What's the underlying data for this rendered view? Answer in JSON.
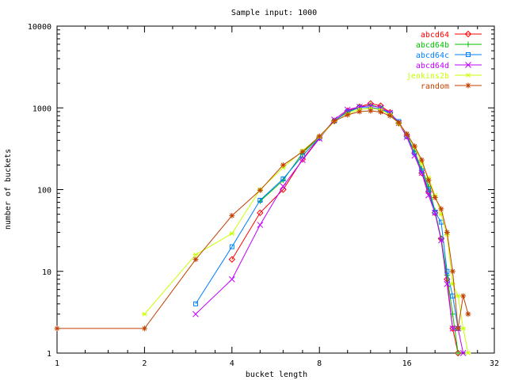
{
  "chart_data": {
    "type": "line",
    "title": "Sample input: 1000",
    "xlabel": "bucket length",
    "ylabel": "number of buckets",
    "x_scale": "log2",
    "y_scale": "log10",
    "xlim": [
      1,
      32
    ],
    "ylim": [
      1,
      10000
    ],
    "x_ticks": [
      1,
      2,
      4,
      8,
      16,
      32
    ],
    "x_tick_labels": [
      "1",
      "2",
      "4",
      "8",
      "16",
      "32"
    ],
    "y_ticks": [
      1,
      10,
      100,
      1000,
      10000
    ],
    "y_tick_labels": [
      "1",
      "10",
      "100",
      "1000",
      "10000"
    ],
    "grid": false,
    "legend_position": "top-right",
    "series": [
      {
        "name": "abcd64",
        "color": "#ff0000",
        "marker": "diamond",
        "points": [
          [
            4,
            14
          ],
          [
            5,
            52
          ],
          [
            6,
            100
          ],
          [
            7,
            235
          ],
          [
            8,
            430
          ],
          [
            9,
            690
          ],
          [
            10,
            920
          ],
          [
            11,
            1030
          ],
          [
            12,
            1130
          ],
          [
            13,
            1060
          ],
          [
            14,
            880
          ],
          [
            15,
            650
          ],
          [
            16,
            450
          ],
          [
            17,
            280
          ],
          [
            18,
            160
          ],
          [
            19,
            95
          ],
          [
            20,
            52
          ],
          [
            21,
            25
          ],
          [
            22,
            8
          ],
          [
            23,
            2
          ],
          [
            24,
            1
          ]
        ]
      },
      {
        "name": "abcd64b",
        "color": "#00c000",
        "marker": "plus",
        "points": [
          [
            5,
            72
          ],
          [
            6,
            130
          ],
          [
            7,
            280
          ],
          [
            8,
            440
          ],
          [
            9,
            700
          ],
          [
            10,
            880
          ],
          [
            11,
            1010
          ],
          [
            12,
            1080
          ],
          [
            13,
            1010
          ],
          [
            14,
            850
          ],
          [
            15,
            650
          ],
          [
            16,
            470
          ],
          [
            17,
            290
          ],
          [
            18,
            180
          ],
          [
            19,
            110
          ],
          [
            20,
            55
          ],
          [
            21,
            25
          ],
          [
            22,
            9
          ],
          [
            23,
            3
          ],
          [
            24,
            1
          ]
        ]
      },
      {
        "name": "abcd64c",
        "color": "#0080ff",
        "marker": "square",
        "points": [
          [
            3,
            4
          ],
          [
            4,
            20
          ],
          [
            5,
            74
          ],
          [
            6,
            135
          ],
          [
            7,
            260
          ],
          [
            8,
            430
          ],
          [
            9,
            690
          ],
          [
            10,
            900
          ],
          [
            11,
            1010
          ],
          [
            12,
            1010
          ],
          [
            13,
            970
          ],
          [
            14,
            850
          ],
          [
            15,
            680
          ],
          [
            16,
            450
          ],
          [
            17,
            280
          ],
          [
            18,
            170
          ],
          [
            19,
            100
          ],
          [
            20,
            53
          ],
          [
            21,
            40
          ],
          [
            22,
            10
          ],
          [
            23,
            5
          ],
          [
            24,
            2
          ]
        ]
      },
      {
        "name": "abcd64d",
        "color": "#c000ff",
        "marker": "cross",
        "points": [
          [
            3,
            3
          ],
          [
            4,
            8
          ],
          [
            5,
            37
          ],
          [
            6,
            110
          ],
          [
            7,
            230
          ],
          [
            8,
            420
          ],
          [
            9,
            720
          ],
          [
            10,
            950
          ],
          [
            11,
            1030
          ],
          [
            12,
            1060
          ],
          [
            13,
            1010
          ],
          [
            14,
            870
          ],
          [
            15,
            650
          ],
          [
            16,
            440
          ],
          [
            17,
            260
          ],
          [
            18,
            160
          ],
          [
            19,
            85
          ],
          [
            20,
            52
          ],
          [
            21,
            24
          ],
          [
            22,
            7
          ],
          [
            23,
            2
          ],
          [
            24,
            2
          ],
          [
            25,
            1
          ]
        ]
      },
      {
        "name": "jenkins2b",
        "color": "#c8ff00",
        "marker": "star",
        "points": [
          [
            2,
            3
          ],
          [
            3,
            16
          ],
          [
            4,
            29
          ],
          [
            5,
            100
          ],
          [
            6,
            185
          ],
          [
            7,
            300
          ],
          [
            8,
            440
          ],
          [
            9,
            680
          ],
          [
            10,
            840
          ],
          [
            11,
            960
          ],
          [
            12,
            990
          ],
          [
            13,
            950
          ],
          [
            14,
            820
          ],
          [
            15,
            640
          ],
          [
            16,
            480
          ],
          [
            17,
            330
          ],
          [
            18,
            210
          ],
          [
            19,
            140
          ],
          [
            20,
            85
          ],
          [
            21,
            50
          ],
          [
            22,
            28
          ],
          [
            23,
            7
          ],
          [
            24,
            5
          ],
          [
            25,
            2
          ],
          [
            26,
            1
          ]
        ]
      },
      {
        "name": "random",
        "color": "#c04000",
        "marker": "asterisk",
        "points": [
          [
            1,
            2
          ],
          [
            2,
            2
          ],
          [
            3,
            14
          ],
          [
            4,
            48
          ],
          [
            5,
            98
          ],
          [
            6,
            200
          ],
          [
            7,
            290
          ],
          [
            8,
            450
          ],
          [
            9,
            690
          ],
          [
            10,
            820
          ],
          [
            11,
            900
          ],
          [
            12,
            920
          ],
          [
            13,
            890
          ],
          [
            14,
            800
          ],
          [
            15,
            660
          ],
          [
            16,
            480
          ],
          [
            17,
            340
          ],
          [
            18,
            230
          ],
          [
            19,
            130
          ],
          [
            20,
            80
          ],
          [
            21,
            58
          ],
          [
            22,
            30
          ],
          [
            23,
            10
          ],
          [
            24,
            2
          ],
          [
            25,
            5
          ],
          [
            26,
            3
          ]
        ]
      }
    ]
  }
}
